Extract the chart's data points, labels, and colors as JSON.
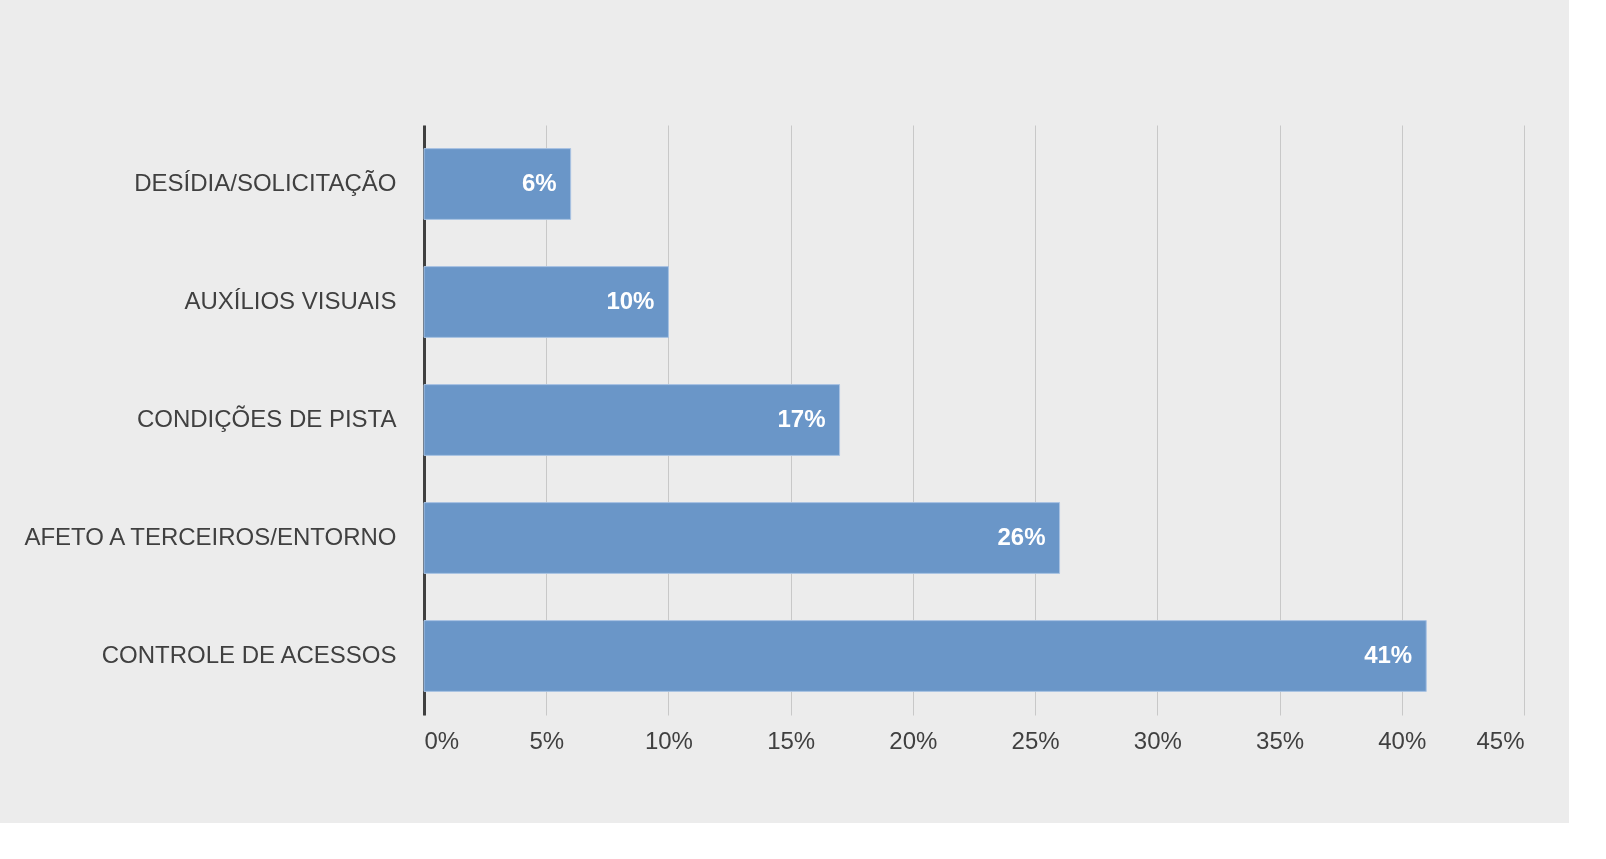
{
  "chart_data": {
    "type": "bar",
    "orientation": "horizontal",
    "categories": [
      "DESÍDIA/SOLICITAÇÃO",
      "AUXÍLIOS VISUAIS",
      "CONDIÇÕES DE PISTA",
      "AFETO A TERCEIROS/ENTORNO",
      "CONTROLE DE ACESSOS"
    ],
    "values": [
      6,
      10,
      17,
      26,
      41
    ],
    "color": "#6a96c8",
    "value_labels": [
      "6%",
      "10%",
      "17%",
      "26%",
      "41%"
    ],
    "xlim": [
      0,
      45
    ],
    "xticks": [
      {
        "value": 0,
        "label": "0%"
      },
      {
        "value": 5,
        "label": "5%"
      },
      {
        "value": 10,
        "label": "10%"
      },
      {
        "value": 15,
        "label": "15%"
      },
      {
        "value": 20,
        "label": "20%"
      },
      {
        "value": 25,
        "label": "25%"
      },
      {
        "value": 30,
        "label": "30%"
      },
      {
        "value": 35,
        "label": "35%"
      },
      {
        "value": 40,
        "label": "40%"
      },
      {
        "value": 45,
        "label": "45%"
      }
    ],
    "grid": "x"
  }
}
